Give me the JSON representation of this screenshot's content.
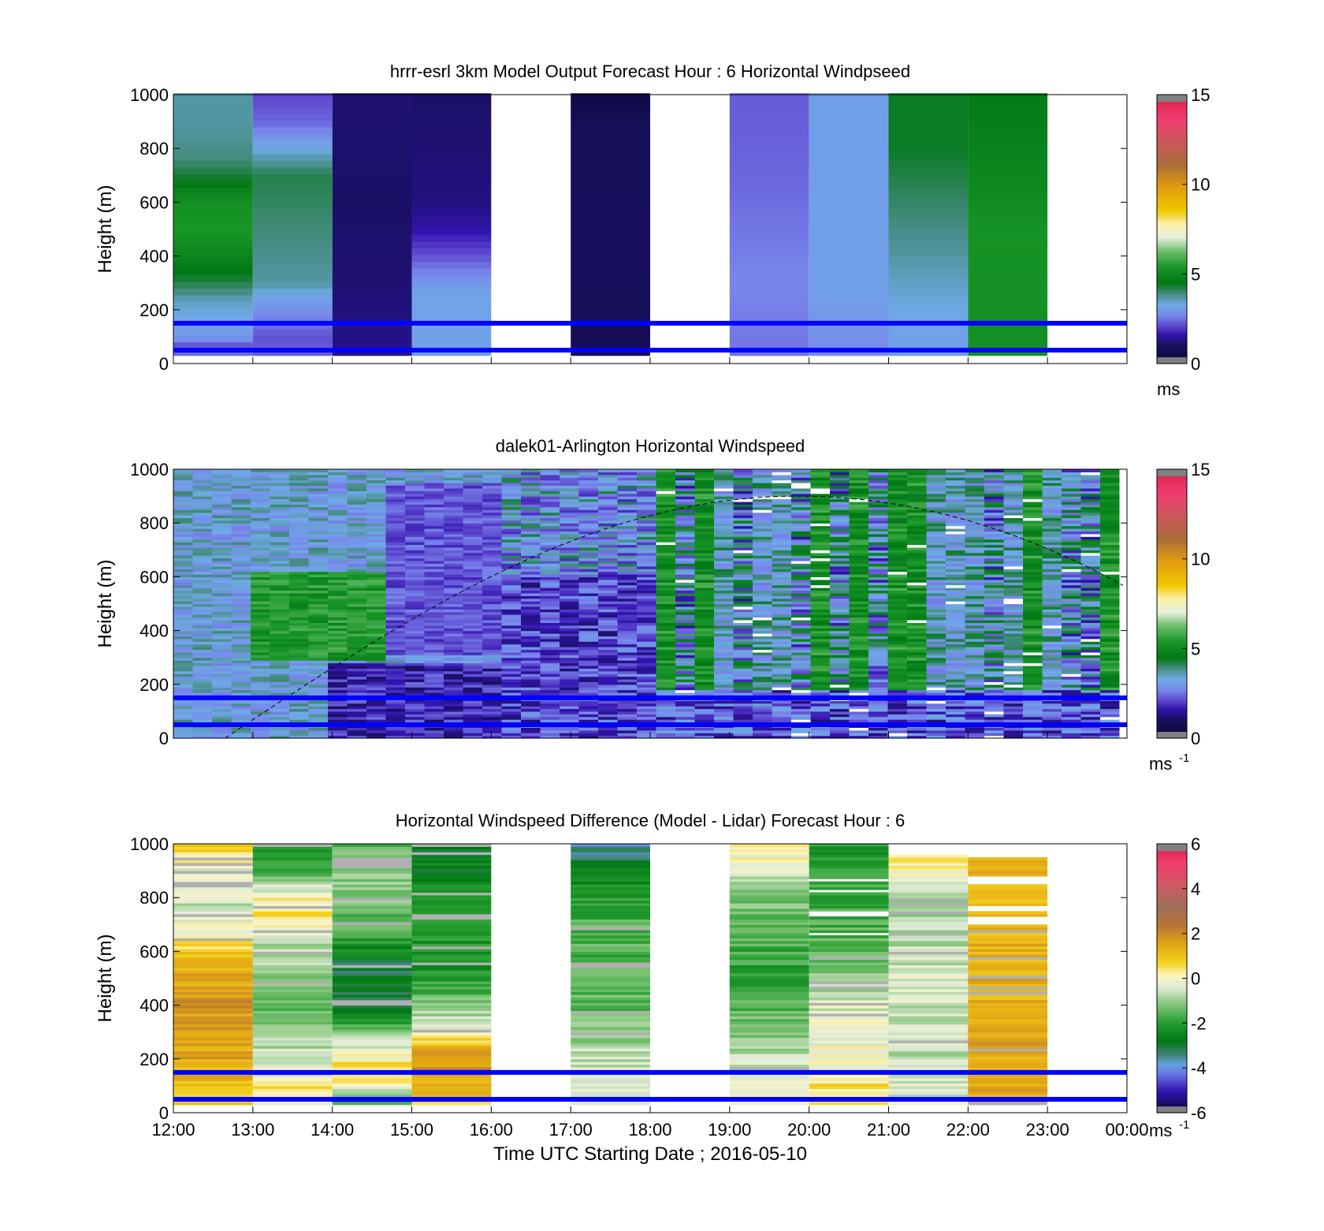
{
  "chart_data": [
    {
      "type": "heatmap",
      "title": "hrrr-esrl 3km Model Output   Forecast Hour : 6 Horizontal Windpseed",
      "ylabel": "Height (m)",
      "xlabel": "",
      "ylim": [
        0,
        1000
      ],
      "yticks": [
        "0",
        "200",
        "400",
        "600",
        "800",
        "1000"
      ],
      "x_ticks": [
        "12:00",
        "13:00",
        "14:00",
        "15:00",
        "16:00",
        "17:00",
        "18:00",
        "19:00",
        "20:00",
        "21:00",
        "22:00",
        "23:00",
        "00:00"
      ],
      "x_tick_labels_shown": false,
      "colorbar": {
        "range": [
          0,
          15
        ],
        "ticks": [
          "0",
          "5",
          "10",
          "15"
        ],
        "unit": "ms",
        "unit_sup": "",
        "palette": "speed"
      },
      "reference_lines_m": [
        50,
        150
      ],
      "reference_line_color": "#0000ff",
      "column_hours": [
        12,
        13,
        14,
        15,
        17,
        19,
        20,
        21,
        22
      ],
      "column_values": [
        [
          {
            "z": 0,
            "v": 3.3
          },
          {
            "z": 60,
            "v": 2.1
          },
          {
            "z": 100,
            "v": 3.0
          },
          {
            "z": 230,
            "v": 3.5
          },
          {
            "z": 310,
            "v": 4.3
          },
          {
            "z": 420,
            "v": 5.0
          },
          {
            "z": 500,
            "v": 5.4
          },
          {
            "z": 600,
            "v": 5.2
          },
          {
            "z": 700,
            "v": 4.3
          },
          {
            "z": 770,
            "v": 3.9
          },
          {
            "z": 900,
            "v": 3.7
          }
        ],
        [
          {
            "z": 0,
            "v": 2.4
          },
          {
            "z": 100,
            "v": 2.2
          },
          {
            "z": 250,
            "v": 3.2
          },
          {
            "z": 300,
            "v": 3.7
          },
          {
            "z": 700,
            "v": 4.2
          },
          {
            "z": 800,
            "v": 3.3
          },
          {
            "z": 900,
            "v": 2.4
          },
          {
            "z": 1000,
            "v": 2.1
          }
        ],
        [
          {
            "z": 0,
            "v": 1.4
          },
          {
            "z": 300,
            "v": 1.2
          },
          {
            "z": 600,
            "v": 1.1
          },
          {
            "z": 1000,
            "v": 1.2
          }
        ],
        [
          {
            "z": 0,
            "v": 3.1
          },
          {
            "z": 250,
            "v": 3.2
          },
          {
            "z": 300,
            "v": 3.0
          },
          {
            "z": 400,
            "v": 2.2
          },
          {
            "z": 500,
            "v": 1.6
          },
          {
            "z": 600,
            "v": 1.3
          },
          {
            "z": 1000,
            "v": 1.1
          }
        ],
        [
          {
            "z": 0,
            "v": 0.8
          },
          {
            "z": 200,
            "v": 0.9
          },
          {
            "z": 400,
            "v": 1.0
          },
          {
            "z": 900,
            "v": 0.9
          },
          {
            "z": 1000,
            "v": 0.5
          }
        ],
        [
          {
            "z": 0,
            "v": 2.5
          },
          {
            "z": 300,
            "v": 2.7
          },
          {
            "z": 700,
            "v": 2.4
          },
          {
            "z": 1000,
            "v": 2.3
          }
        ],
        [
          {
            "z": 0,
            "v": 2.7
          },
          {
            "z": 250,
            "v": 3.1
          },
          {
            "z": 1000,
            "v": 3.1
          }
        ],
        [
          {
            "z": 0,
            "v": 3.0
          },
          {
            "z": 200,
            "v": 3.3
          },
          {
            "z": 400,
            "v": 3.7
          },
          {
            "z": 800,
            "v": 4.4
          },
          {
            "z": 1000,
            "v": 4.4
          }
        ],
        [
          {
            "z": 0,
            "v": 5.2
          },
          {
            "z": 500,
            "v": 5.3
          },
          {
            "z": 650,
            "v": 5.0
          },
          {
            "z": 1000,
            "v": 4.6
          }
        ]
      ]
    },
    {
      "type": "heatmap",
      "title": "dalek01-Arlington  Horizontal Windspeed",
      "ylabel": "Height (m)",
      "xlabel": "",
      "ylim": [
        0,
        1000
      ],
      "yticks": [
        "0",
        "200",
        "400",
        "600",
        "800",
        "1000"
      ],
      "x_ticks": [
        "12:00",
        "13:00",
        "14:00",
        "15:00",
        "16:00",
        "17:00",
        "18:00",
        "19:00",
        "20:00",
        "21:00",
        "22:00",
        "23:00",
        "00:00"
      ],
      "x_tick_labels_shown": false,
      "colorbar": {
        "range": [
          0,
          15
        ],
        "ticks": [
          "0",
          "5",
          "10",
          "15"
        ],
        "unit": "ms",
        "unit_sup": "-1",
        "palette": "speed"
      },
      "reference_lines_m": [
        50,
        150
      ],
      "reference_line_color": "#0000ff",
      "data_extent_hours": [
        12,
        23.85
      ],
      "dashed_curve": {
        "start_hour": 12.65,
        "peak_hour": 19.85,
        "peak_m": 900,
        "end_hour": 24,
        "end_m": 560
      },
      "description_of_field": "lidar windspeed mostly 1-4 m/s before 16:00 with a 5-6 m/s band at 300-600 m around 13:00-14:30; a 1-2 m/s layer below 300 m from 14:00; after 18:00 mixed 2-6 m/s columns with gaps"
    },
    {
      "type": "heatmap",
      "title": "Horizontal Windspeed Difference (Model - Lidar) Forecast Hour : 6",
      "ylabel": "Height (m)",
      "xlabel": "Time UTC  Starting Date ; 2016-05-10",
      "ylim": [
        0,
        1000
      ],
      "yticks": [
        "0",
        "200",
        "400",
        "600",
        "800",
        "1000"
      ],
      "x_ticks": [
        "12:00",
        "13:00",
        "14:00",
        "15:00",
        "16:00",
        "17:00",
        "18:00",
        "19:00",
        "20:00",
        "21:00",
        "22:00",
        "23:00",
        "00:00"
      ],
      "x_tick_labels_shown": true,
      "colorbar": {
        "range": [
          -6,
          6
        ],
        "ticks": [
          "-6",
          "-4",
          "-2",
          "0",
          "2",
          "4",
          "6"
        ],
        "unit": "ms",
        "unit_sup": "-1",
        "palette": "diff"
      },
      "reference_lines_m": [
        50,
        150
      ],
      "reference_line_color": "#0000ff",
      "column_hours": [
        12,
        13,
        14,
        15,
        17,
        19,
        20,
        21,
        22
      ],
      "column_values": [
        [
          {
            "z": 0,
            "v": 0.6
          },
          {
            "z": 200,
            "v": 1.5
          },
          {
            "z": 450,
            "v": 1.8
          },
          {
            "z": 600,
            "v": 0.8
          },
          {
            "z": 750,
            "v": -0.6
          },
          {
            "z": 900,
            "v": -0.2
          },
          {
            "z": 1000,
            "v": 0.8
          }
        ],
        [
          {
            "z": 0,
            "v": -0.8
          },
          {
            "z": 100,
            "v": 0.5
          },
          {
            "z": 200,
            "v": -0.5
          },
          {
            "z": 400,
            "v": -1.5
          },
          {
            "z": 650,
            "v": -0.6
          },
          {
            "z": 750,
            "v": 0.6
          },
          {
            "z": 850,
            "v": -0.5
          },
          {
            "z": 920,
            "v": -2.0
          },
          {
            "z": 1000,
            "v": -2.4
          }
        ],
        [
          {
            "z": 0,
            "v": -2.5
          },
          {
            "z": 150,
            "v": 0.8
          },
          {
            "z": 250,
            "v": -0.3
          },
          {
            "z": 380,
            "v": -2.8
          },
          {
            "z": 550,
            "v": -3.0
          },
          {
            "z": 700,
            "v": -1.5
          },
          {
            "z": 900,
            "v": -1.0
          },
          {
            "z": 1000,
            "v": -1.6
          }
        ],
        [
          {
            "z": 0,
            "v": 0.6
          },
          {
            "z": 200,
            "v": 2.0
          },
          {
            "z": 330,
            "v": -0.5
          },
          {
            "z": 500,
            "v": -2.1
          },
          {
            "z": 800,
            "v": -2.3
          },
          {
            "z": 1000,
            "v": -2.9
          }
        ],
        [
          {
            "z": 0,
            "v": 0.0
          },
          {
            "z": 170,
            "v": -0.5
          },
          {
            "z": 400,
            "v": -1.5
          },
          {
            "z": 700,
            "v": -1.6
          },
          {
            "z": 900,
            "v": -2.6
          },
          {
            "z": 960,
            "v": -3.2
          },
          {
            "z": 1000,
            "v": -4.0
          }
        ],
        [
          {
            "z": 0,
            "v": 0.5
          },
          {
            "z": 200,
            "v": -0.6
          },
          {
            "z": 500,
            "v": -2.0
          },
          {
            "z": 800,
            "v": -1.2
          },
          {
            "z": 1000,
            "v": 0.4
          }
        ],
        [
          {
            "z": 0,
            "v": 1.0
          },
          {
            "z": 150,
            "v": 0.2
          },
          {
            "z": 400,
            "v": -0.4
          },
          {
            "z": 600,
            "v": -1.5
          },
          {
            "z": 800,
            "v": -1.8
          },
          {
            "z": 1000,
            "v": -2.1
          }
        ],
        [
          {
            "z": 0,
            "v": -0.3
          },
          {
            "z": 200,
            "v": -0.6
          },
          {
            "z": 500,
            "v": -0.5
          },
          {
            "z": 800,
            "v": -1.0
          },
          {
            "z": 950,
            "v": 0.4
          }
        ],
        [
          {
            "z": 0,
            "v": 1.5
          },
          {
            "z": 300,
            "v": 1.5
          },
          {
            "z": 500,
            "v": 1.4
          },
          {
            "z": 700,
            "v": 1.2
          },
          {
            "z": 950,
            "v": 1.3
          }
        ]
      ],
      "column_top_m": [
        1000,
        1000,
        1000,
        1000,
        1000,
        1000,
        1000,
        960,
        950
      ]
    }
  ]
}
